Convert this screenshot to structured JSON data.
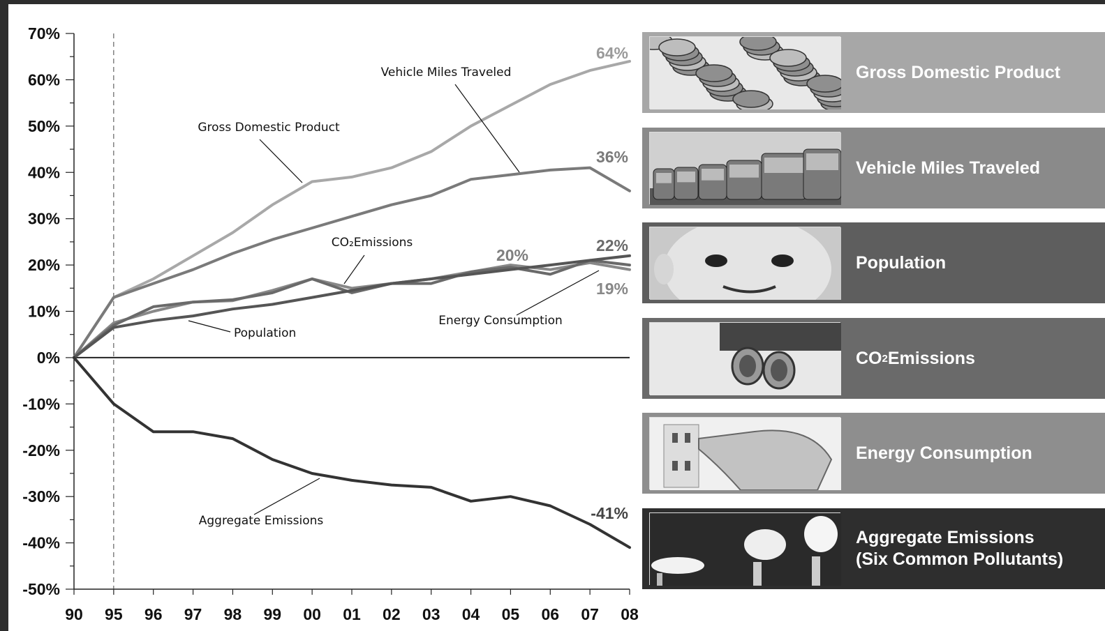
{
  "chart_data": {
    "type": "line",
    "x": [
      "90",
      "95",
      "96",
      "97",
      "98",
      "99",
      "00",
      "01",
      "02",
      "03",
      "04",
      "05",
      "06",
      "07",
      "08"
    ],
    "ylim": [
      -50,
      70
    ],
    "y_ticks": [
      "70%",
      "60%",
      "50%",
      "40%",
      "30%",
      "20%",
      "10%",
      "0%",
      "-10%",
      "-20%",
      "-30%",
      "-40%",
      "-50%"
    ],
    "grid": false,
    "series": [
      {
        "name": "Gross Domestic Product",
        "color": "#a8a8a8",
        "values": [
          0,
          13,
          17,
          22,
          27,
          33,
          38,
          39,
          41,
          44.5,
          50,
          54.5,
          59,
          62,
          64
        ]
      },
      {
        "name": "Vehicle Miles Traveled",
        "color": "#7a7a7a",
        "values": [
          0,
          13,
          16,
          19,
          22.5,
          25.5,
          28,
          30.5,
          33,
          35,
          38.5,
          39.5,
          40.5,
          41,
          36
        ]
      },
      {
        "name": "CO2 Emissions",
        "color": "#6a6a6a",
        "values": [
          0,
          7,
          11,
          12,
          12.5,
          14,
          17,
          14,
          16,
          16,
          18.5,
          19.5,
          18,
          21,
          20
        ]
      },
      {
        "name": "Energy Consumption",
        "color": "#888888",
        "values": [
          0,
          7.5,
          10,
          12,
          12.3,
          14.5,
          17,
          15,
          16,
          17,
          18.5,
          20,
          19,
          20.5,
          19
        ]
      },
      {
        "name": "Population",
        "color": "#555555",
        "values": [
          0,
          6.5,
          8,
          9,
          10.5,
          11.5,
          13,
          14.5,
          16,
          17,
          18,
          19,
          20,
          21,
          22
        ]
      },
      {
        "name": "Aggregate Emissions",
        "color": "#333333",
        "values": [
          0,
          -10,
          -16,
          -16,
          -17.5,
          -22,
          -25,
          -26.5,
          -27.5,
          -28,
          -31,
          -30,
          -32,
          -36,
          -41
        ]
      }
    ],
    "annotations": [
      {
        "text": "Vehicle Miles Traveled"
      },
      {
        "text": "Gross Domestic Product"
      },
      {
        "text": "CO₂Emissions"
      },
      {
        "text": "Population"
      },
      {
        "text": "Energy Consumption"
      },
      {
        "text": "Aggregate Emissions"
      }
    ],
    "end_labels": [
      "64%",
      "36%",
      "20%",
      "22%",
      "19%",
      "-41%"
    ]
  },
  "panels": [
    {
      "label": "Gross Domestic Product",
      "bg": "#a7a7a7",
      "icon": "coins-photo"
    },
    {
      "label": "Vehicle Miles Traveled",
      "bg": "#8a8a8a",
      "icon": "traffic-photo"
    },
    {
      "label": "Population",
      "bg": "#5e5e5e",
      "icon": "baby-photo"
    },
    {
      "label": "CO",
      "sub": "2",
      "label_rest": " Emissions",
      "bg": "#6a6a6a",
      "icon": "exhaust-photo"
    },
    {
      "label": "Energy Consumption",
      "bg": "#8e8e8e",
      "icon": "plug-photo"
    },
    {
      "label": "Aggregate Emissions\n(Six Common Pollutants)",
      "bg": "#2e2e2e",
      "icon": "smokestacks-photo"
    }
  ]
}
